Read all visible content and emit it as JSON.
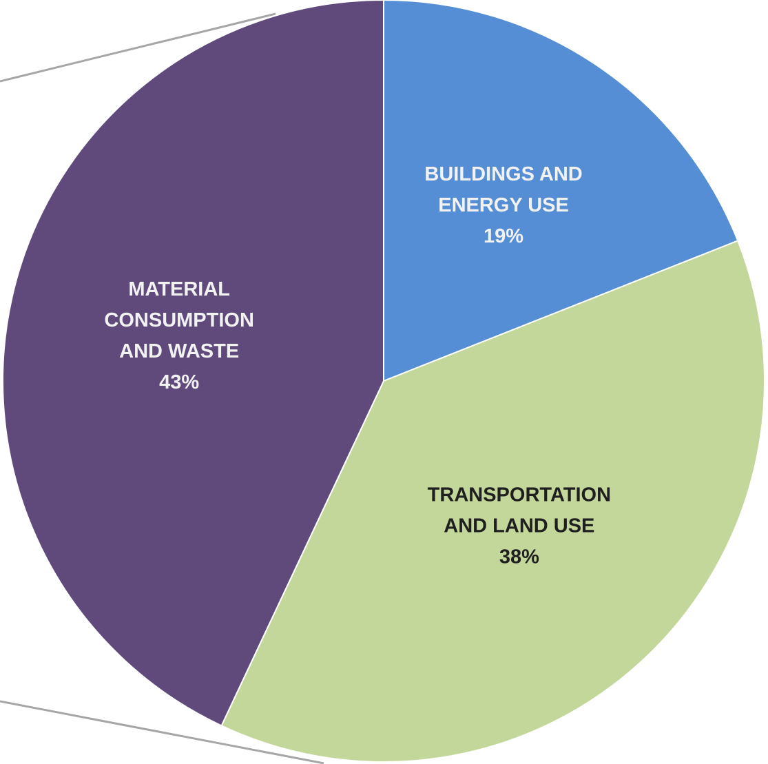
{
  "chart_data": {
    "type": "pie",
    "slices": [
      {
        "label_lines": [
          "BUILDINGS AND",
          "ENERGY USE"
        ],
        "value": 19,
        "value_label": "19%",
        "color": "#558ED5",
        "text_color": "#F2F2F2"
      },
      {
        "label_lines": [
          "TRANSPORTATION",
          "AND LAND USE"
        ],
        "value": 38,
        "value_label": "38%",
        "color": "#C4D79B",
        "text_color": "#1F1F1F"
      },
      {
        "label_lines": [
          "MATERIAL",
          "CONSUMPTION",
          "AND WASTE"
        ],
        "value": 43,
        "value_label": "43%",
        "color": "#604A7B",
        "text_color": "#F2F2F2"
      }
    ],
    "start_angle_deg": 0,
    "direction": "clockwise",
    "legend": "none",
    "connector_lines": true,
    "connector_color": "#A6A6A6"
  }
}
